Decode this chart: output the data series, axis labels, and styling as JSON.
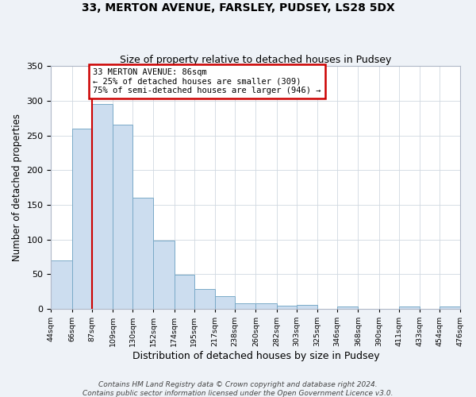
{
  "title_line1": "33, MERTON AVENUE, FARSLEY, PUDSEY, LS28 5DX",
  "title_line2": "Size of property relative to detached houses in Pudsey",
  "xlabel": "Distribution of detached houses by size in Pudsey",
  "ylabel": "Number of detached properties",
  "bar_edges": [
    44,
    66,
    87,
    109,
    130,
    152,
    174,
    195,
    217,
    238,
    260,
    282,
    303,
    325,
    346,
    368,
    390,
    411,
    433,
    454,
    476
  ],
  "bar_heights": [
    70,
    260,
    295,
    265,
    160,
    98,
    49,
    28,
    18,
    8,
    8,
    5,
    6,
    0,
    3,
    0,
    0,
    3,
    0,
    3
  ],
  "bar_color": "#ccddef",
  "bar_edgecolor": "#7aaac8",
  "vline_x": 87,
  "vline_color": "#cc0000",
  "annotation_text": "33 MERTON AVENUE: 86sqm\n← 25% of detached houses are smaller (309)\n75% of semi-detached houses are larger (946) →",
  "annotation_box_color": "#cc0000",
  "ylim": [
    0,
    350
  ],
  "yticks": [
    0,
    50,
    100,
    150,
    200,
    250,
    300,
    350
  ],
  "tick_labels": [
    "44sqm",
    "66sqm",
    "87sqm",
    "109sqm",
    "130sqm",
    "152sqm",
    "174sqm",
    "195sqm",
    "217sqm",
    "238sqm",
    "260sqm",
    "282sqm",
    "303sqm",
    "325sqm",
    "346sqm",
    "368sqm",
    "390sqm",
    "411sqm",
    "433sqm",
    "454sqm",
    "476sqm"
  ],
  "footer_line1": "Contains HM Land Registry data © Crown copyright and database right 2024.",
  "footer_line2": "Contains public sector information licensed under the Open Government Licence v3.0.",
  "background_color": "#eef2f7",
  "plot_bg_color": "#ffffff",
  "grid_color": "#d0d8e0"
}
